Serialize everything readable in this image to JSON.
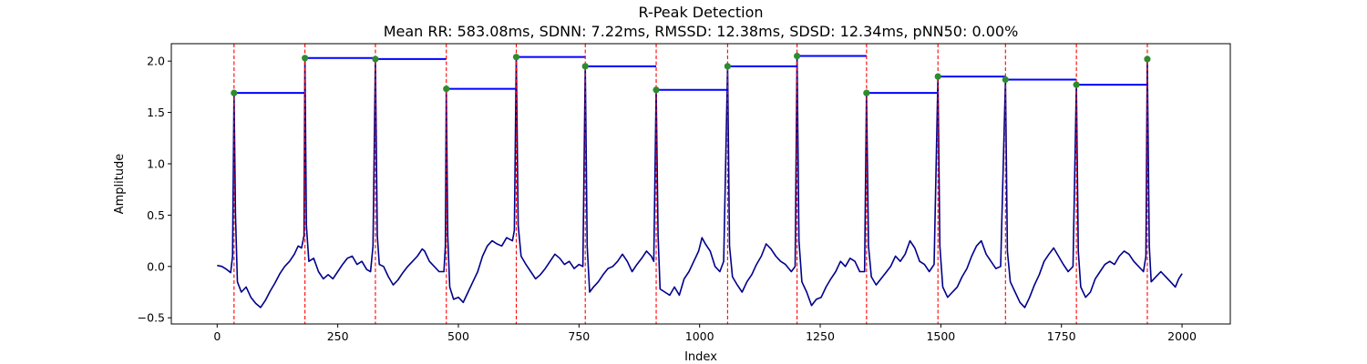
{
  "chart_data": {
    "type": "line",
    "title": "R-Peak Detection",
    "subtitle": "Mean RR: 583.08ms, SDNN: 7.22ms, RMSSD: 12.38ms, SDSD: 12.34ms, pNN50: 0.00%",
    "xlabel": "Index",
    "ylabel": "Amplitude",
    "xlim": [
      -95,
      2100
    ],
    "ylim": [
      -0.56,
      2.17
    ],
    "xticks": [
      0,
      250,
      500,
      750,
      1000,
      1250,
      1500,
      1750,
      2000
    ],
    "yticks": [
      -0.5,
      0.0,
      0.5,
      1.0,
      1.5,
      2.0
    ],
    "grid": false,
    "legend": "none",
    "colors": {
      "signal": "#00008b",
      "peak_line": "#ff0000",
      "rr_segment": "#0000ff",
      "peak_marker": "#2e8b2e"
    },
    "signal_points": [
      [
        0,
        0.01
      ],
      [
        10,
        0.0
      ],
      [
        20,
        -0.03
      ],
      [
        28,
        -0.06
      ],
      [
        32,
        0.1
      ],
      [
        35,
        1.69
      ],
      [
        38,
        0.5
      ],
      [
        42,
        -0.15
      ],
      [
        50,
        -0.25
      ],
      [
        60,
        -0.2
      ],
      [
        70,
        -0.3
      ],
      [
        80,
        -0.36
      ],
      [
        90,
        -0.4
      ],
      [
        100,
        -0.33
      ],
      [
        110,
        -0.24
      ],
      [
        120,
        -0.16
      ],
      [
        130,
        -0.07
      ],
      [
        140,
        0.0
      ],
      [
        150,
        0.05
      ],
      [
        160,
        0.12
      ],
      [
        168,
        0.2
      ],
      [
        175,
        0.18
      ],
      [
        180,
        0.3
      ],
      [
        182,
        2.03
      ],
      [
        185,
        0.4
      ],
      [
        190,
        0.05
      ],
      [
        200,
        0.08
      ],
      [
        210,
        -0.05
      ],
      [
        220,
        -0.12
      ],
      [
        230,
        -0.08
      ],
      [
        240,
        -0.12
      ],
      [
        250,
        -0.05
      ],
      [
        260,
        0.02
      ],
      [
        270,
        0.08
      ],
      [
        280,
        0.1
      ],
      [
        290,
        0.02
      ],
      [
        300,
        0.05
      ],
      [
        310,
        -0.03
      ],
      [
        318,
        -0.05
      ],
      [
        323,
        0.2
      ],
      [
        328,
        2.02
      ],
      [
        332,
        0.3
      ],
      [
        336,
        0.02
      ],
      [
        345,
        0.0
      ],
      [
        355,
        -0.1
      ],
      [
        365,
        -0.18
      ],
      [
        375,
        -0.13
      ],
      [
        385,
        -0.06
      ],
      [
        395,
        0.0
      ],
      [
        405,
        0.05
      ],
      [
        415,
        0.1
      ],
      [
        425,
        0.17
      ],
      [
        430,
        0.15
      ],
      [
        440,
        0.05
      ],
      [
        450,
        0.0
      ],
      [
        460,
        -0.05
      ],
      [
        470,
        -0.05
      ],
      [
        473,
        0.2
      ],
      [
        475,
        1.73
      ],
      [
        478,
        0.3
      ],
      [
        482,
        -0.2
      ],
      [
        490,
        -0.32
      ],
      [
        500,
        -0.3
      ],
      [
        510,
        -0.35
      ],
      [
        520,
        -0.25
      ],
      [
        530,
        -0.15
      ],
      [
        540,
        -0.05
      ],
      [
        550,
        0.1
      ],
      [
        560,
        0.2
      ],
      [
        570,
        0.25
      ],
      [
        580,
        0.22
      ],
      [
        590,
        0.2
      ],
      [
        600,
        0.28
      ],
      [
        612,
        0.25
      ],
      [
        616,
        0.35
      ],
      [
        620,
        2.04
      ],
      [
        624,
        0.4
      ],
      [
        630,
        0.1
      ],
      [
        640,
        0.02
      ],
      [
        650,
        -0.05
      ],
      [
        660,
        -0.12
      ],
      [
        670,
        -0.08
      ],
      [
        680,
        -0.02
      ],
      [
        690,
        0.05
      ],
      [
        700,
        0.12
      ],
      [
        710,
        0.08
      ],
      [
        720,
        0.02
      ],
      [
        730,
        0.05
      ],
      [
        740,
        -0.02
      ],
      [
        750,
        0.02
      ],
      [
        758,
        0.0
      ],
      [
        763,
        1.95
      ],
      [
        767,
        0.2
      ],
      [
        772,
        -0.25
      ],
      [
        780,
        -0.2
      ],
      [
        790,
        -0.15
      ],
      [
        800,
        -0.08
      ],
      [
        810,
        -0.02
      ],
      [
        820,
        0.0
      ],
      [
        830,
        0.05
      ],
      [
        840,
        0.12
      ],
      [
        850,
        0.05
      ],
      [
        860,
        -0.05
      ],
      [
        870,
        0.02
      ],
      [
        880,
        0.08
      ],
      [
        890,
        0.15
      ],
      [
        900,
        0.1
      ],
      [
        905,
        0.05
      ],
      [
        910,
        1.72
      ],
      [
        914,
        0.3
      ],
      [
        918,
        -0.22
      ],
      [
        928,
        -0.25
      ],
      [
        938,
        -0.28
      ],
      [
        948,
        -0.2
      ],
      [
        958,
        -0.28
      ],
      [
        968,
        -0.12
      ],
      [
        978,
        -0.05
      ],
      [
        988,
        0.05
      ],
      [
        998,
        0.15
      ],
      [
        1005,
        0.28
      ],
      [
        1012,
        0.22
      ],
      [
        1022,
        0.15
      ],
      [
        1032,
        0.0
      ],
      [
        1042,
        -0.05
      ],
      [
        1050,
        0.05
      ],
      [
        1058,
        1.95
      ],
      [
        1062,
        0.2
      ],
      [
        1068,
        -0.1
      ],
      [
        1078,
        -0.18
      ],
      [
        1088,
        -0.25
      ],
      [
        1098,
        -0.15
      ],
      [
        1108,
        -0.08
      ],
      [
        1118,
        0.02
      ],
      [
        1128,
        0.1
      ],
      [
        1138,
        0.22
      ],
      [
        1148,
        0.17
      ],
      [
        1158,
        0.1
      ],
      [
        1168,
        0.05
      ],
      [
        1178,
        0.02
      ],
      [
        1190,
        -0.05
      ],
      [
        1198,
        0.0
      ],
      [
        1202,
        2.05
      ],
      [
        1206,
        0.25
      ],
      [
        1212,
        -0.15
      ],
      [
        1222,
        -0.25
      ],
      [
        1232,
        -0.38
      ],
      [
        1242,
        -0.32
      ],
      [
        1252,
        -0.3
      ],
      [
        1262,
        -0.2
      ],
      [
        1272,
        -0.12
      ],
      [
        1282,
        -0.05
      ],
      [
        1292,
        0.05
      ],
      [
        1302,
        0.0
      ],
      [
        1312,
        0.08
      ],
      [
        1322,
        0.05
      ],
      [
        1332,
        -0.05
      ],
      [
        1342,
        -0.05
      ],
      [
        1346,
        1.69
      ],
      [
        1350,
        0.2
      ],
      [
        1356,
        -0.1
      ],
      [
        1366,
        -0.18
      ],
      [
        1376,
        -0.12
      ],
      [
        1386,
        -0.06
      ],
      [
        1396,
        0.0
      ],
      [
        1406,
        0.1
      ],
      [
        1416,
        0.05
      ],
      [
        1426,
        0.12
      ],
      [
        1436,
        0.25
      ],
      [
        1446,
        0.18
      ],
      [
        1456,
        0.05
      ],
      [
        1466,
        0.02
      ],
      [
        1476,
        -0.05
      ],
      [
        1486,
        0.02
      ],
      [
        1494,
        1.85
      ],
      [
        1498,
        0.2
      ],
      [
        1504,
        -0.2
      ],
      [
        1514,
        -0.3
      ],
      [
        1524,
        -0.25
      ],
      [
        1534,
        -0.2
      ],
      [
        1544,
        -0.1
      ],
      [
        1554,
        -0.02
      ],
      [
        1564,
        0.1
      ],
      [
        1574,
        0.2
      ],
      [
        1584,
        0.25
      ],
      [
        1594,
        0.12
      ],
      [
        1604,
        0.05
      ],
      [
        1614,
        -0.02
      ],
      [
        1624,
        0.0
      ],
      [
        1634,
        1.82
      ],
      [
        1638,
        0.15
      ],
      [
        1644,
        -0.15
      ],
      [
        1654,
        -0.25
      ],
      [
        1664,
        -0.35
      ],
      [
        1674,
        -0.4
      ],
      [
        1684,
        -0.3
      ],
      [
        1694,
        -0.18
      ],
      [
        1704,
        -0.08
      ],
      [
        1714,
        0.05
      ],
      [
        1724,
        0.12
      ],
      [
        1734,
        0.18
      ],
      [
        1744,
        0.1
      ],
      [
        1754,
        0.02
      ],
      [
        1764,
        -0.05
      ],
      [
        1774,
        0.0
      ],
      [
        1781,
        1.77
      ],
      [
        1785,
        0.15
      ],
      [
        1790,
        -0.2
      ],
      [
        1800,
        -0.3
      ],
      [
        1810,
        -0.25
      ],
      [
        1820,
        -0.12
      ],
      [
        1830,
        -0.05
      ],
      [
        1840,
        0.02
      ],
      [
        1850,
        0.05
      ],
      [
        1860,
        0.02
      ],
      [
        1870,
        0.1
      ],
      [
        1880,
        0.15
      ],
      [
        1890,
        0.12
      ],
      [
        1900,
        0.05
      ],
      [
        1910,
        0.0
      ],
      [
        1920,
        -0.05
      ],
      [
        1925,
        0.1
      ],
      [
        1928,
        2.02
      ],
      [
        1932,
        0.2
      ],
      [
        1936,
        -0.15
      ],
      [
        1946,
        -0.1
      ],
      [
        1956,
        -0.05
      ],
      [
        1966,
        -0.1
      ],
      [
        1976,
        -0.15
      ],
      [
        1986,
        -0.2
      ],
      [
        1993,
        -0.12
      ],
      [
        2000,
        -0.07
      ]
    ],
    "peaks": [
      {
        "x": 35,
        "y": 1.69
      },
      {
        "x": 182,
        "y": 2.03
      },
      {
        "x": 328,
        "y": 2.02
      },
      {
        "x": 475,
        "y": 1.73
      },
      {
        "x": 620,
        "y": 2.04
      },
      {
        "x": 763,
        "y": 1.95
      },
      {
        "x": 910,
        "y": 1.72
      },
      {
        "x": 1058,
        "y": 1.95
      },
      {
        "x": 1202,
        "y": 2.05
      },
      {
        "x": 1346,
        "y": 1.69
      },
      {
        "x": 1494,
        "y": 1.85
      },
      {
        "x": 1634,
        "y": 1.82
      },
      {
        "x": 1781,
        "y": 1.77
      },
      {
        "x": 1928,
        "y": 2.02
      }
    ],
    "rr_segments": [
      {
        "x_start": 35,
        "x_end": 182,
        "y": 1.69
      },
      {
        "x_start": 182,
        "x_end": 328,
        "y": 2.03
      },
      {
        "x_start": 328,
        "x_end": 475,
        "y": 2.02
      },
      {
        "x_start": 475,
        "x_end": 620,
        "y": 1.73
      },
      {
        "x_start": 620,
        "x_end": 763,
        "y": 2.04
      },
      {
        "x_start": 763,
        "x_end": 910,
        "y": 1.95
      },
      {
        "x_start": 910,
        "x_end": 1058,
        "y": 1.72
      },
      {
        "x_start": 1058,
        "x_end": 1202,
        "y": 1.95
      },
      {
        "x_start": 1202,
        "x_end": 1346,
        "y": 2.05
      },
      {
        "x_start": 1346,
        "x_end": 1494,
        "y": 1.69
      },
      {
        "x_start": 1494,
        "x_end": 1634,
        "y": 1.85
      },
      {
        "x_start": 1634,
        "x_end": 1781,
        "y": 1.82
      },
      {
        "x_start": 1781,
        "x_end": 1928,
        "y": 1.77
      }
    ]
  }
}
